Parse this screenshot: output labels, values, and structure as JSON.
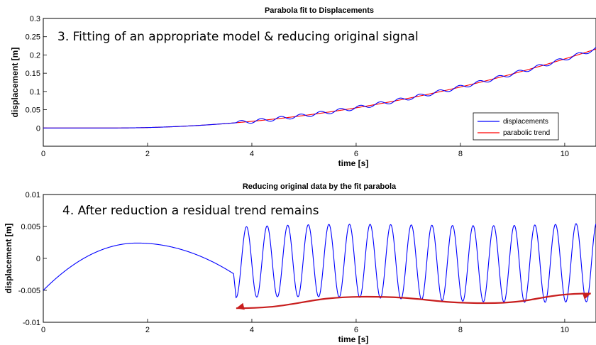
{
  "chart_data": [
    {
      "type": "line",
      "title": "Parabola fit to Displacements",
      "xlabel": "time [s]",
      "ylabel": "displacement [m]",
      "xlim": [
        0,
        10.6
      ],
      "ylim": [
        -0.05,
        0.3
      ],
      "xticks": [
        "0",
        "2",
        "4",
        "6",
        "8",
        "10"
      ],
      "yticks": [
        "0",
        "0.05",
        "0.1",
        "0.15",
        "0.2",
        "0.25",
        "0.3"
      ],
      "annotation": "3. Fitting of an appropriate model & reducing original signal",
      "legend_position": "bottom-right",
      "series": [
        {
          "name": "displacements",
          "color": "#0000ff",
          "x_range": [
            0,
            10.6
          ],
          "onset": 3.7,
          "oscillation_amplitude": 0.005,
          "oscillation_period": 0.38
        },
        {
          "name": "parabolic trend",
          "color": "#ff0000",
          "x_range": [
            0,
            10.6
          ],
          "vertex_x": 1.3,
          "coefficient": 0.0025
        }
      ]
    },
    {
      "type": "line",
      "title": "Reducing original data by the fit parabola",
      "xlabel": "time [s]",
      "ylabel": "displacement [m]",
      "xlim": [
        0,
        10.6
      ],
      "ylim": [
        -0.01,
        0.01
      ],
      "xticks": [
        "0",
        "2",
        "4",
        "6",
        "8",
        "10"
      ],
      "yticks": [
        "-0.01",
        "-0.005",
        "0",
        "0.005",
        "0.01"
      ],
      "annotation": "4. After reduction a residual trend remains",
      "series": [
        {
          "name": "residual",
          "color": "#0000ff",
          "hump": {
            "start": [
              0,
              -0.005
            ],
            "peak": [
              1.8,
              0.0024
            ],
            "end": [
              3.65,
              -0.0024
            ]
          },
          "oscillation": {
            "start": 3.7,
            "end": 10.6,
            "amplitude": 0.0055,
            "period": 0.395
          }
        },
        {
          "name": "residual trend arrow",
          "color": "#c81e1e",
          "points": [
            [
              3.7,
              -0.0078
            ],
            [
              6.2,
              -0.006
            ],
            [
              8.5,
              -0.007
            ],
            [
              10.5,
              -0.0055
            ]
          ]
        }
      ]
    }
  ]
}
